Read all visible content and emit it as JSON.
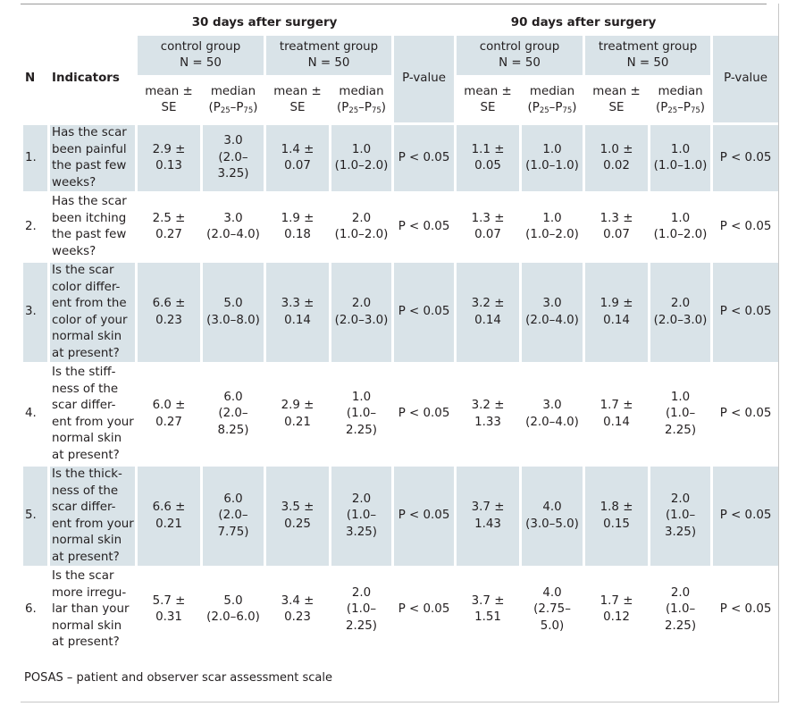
{
  "periods": [
    "30 days after surgery",
    "90 days after surgery"
  ],
  "col_n": "N",
  "col_indicators": "Indicators",
  "group_control": "control group",
  "group_treatment": "treatment group",
  "group_n": "N = 50",
  "pvalue_label": "P-value",
  "mean_label": "mean ± SE",
  "median_label": "median",
  "range_label": {
    "open": "(P",
    "p1": "25",
    "dash": "–P",
    "p2": "75",
    "close": ")"
  },
  "rows": [
    {
      "n": "1.",
      "indicator_lines": [
        "Has the scar",
        "been painful",
        "the past few",
        "weeks?"
      ],
      "d30": {
        "c_mean": "2.9 ± 0.13",
        "c_med": "3.0",
        "c_rng": "(2.0–3.25)",
        "t_mean": "1.4 ± 0.07",
        "t_med": "1.0",
        "t_rng": "(1.0–2.0)",
        "p": "P < 0.05"
      },
      "d90": {
        "c_mean": "1.1 ± 0.05",
        "c_med": "1.0",
        "c_rng": "(1.0–1.0)",
        "t_mean": "1.0 ± 0.02",
        "t_med": "1.0",
        "t_rng": "(1.0–1.0)",
        "p": "P < 0.05"
      }
    },
    {
      "n": "2.",
      "indicator_lines": [
        "Has the scar",
        "been itching",
        "the past few",
        "weeks?"
      ],
      "d30": {
        "c_mean": "2.5 ± 0.27",
        "c_med": "3.0",
        "c_rng": "(2.0–4.0)",
        "t_mean": "1.9 ± 0.18",
        "t_med": "2.0",
        "t_rng": "(1.0–2.0)",
        "p": "P < 0.05"
      },
      "d90": {
        "c_mean": "1.3 ± 0.07",
        "c_med": "1.0",
        "c_rng": "(1.0–2.0)",
        "t_mean": "1.3 ± 0.07",
        "t_med": "1.0",
        "t_rng": "(1.0–2.0)",
        "p": "P < 0.05"
      }
    },
    {
      "n": "3.",
      "indicator_lines": [
        "Is the scar",
        "color differ-",
        "ent from the",
        "color of your",
        "normal skin",
        "at present?"
      ],
      "d30": {
        "c_mean": "6.6 ± 0.23",
        "c_med": "5.0",
        "c_rng": "(3.0–8.0)",
        "t_mean": "3.3 ± 0.14",
        "t_med": "2.0",
        "t_rng": "(2.0–3.0)",
        "p": "P < 0.05"
      },
      "d90": {
        "c_mean": "3.2 ± 0.14",
        "c_med": "3.0",
        "c_rng": "(2.0–4.0)",
        "t_mean": "1.9 ± 0.14",
        "t_med": "2.0",
        "t_rng": "(2.0–3.0)",
        "p": "P < 0.05"
      }
    },
    {
      "n": "4.",
      "indicator_lines": [
        "Is the stiff-",
        "ness of the",
        "scar differ-",
        "ent from your",
        "normal skin",
        "at present?"
      ],
      "d30": {
        "c_mean": "6.0 ± 0.27",
        "c_med": "6.0",
        "c_rng": "(2.0–8.25)",
        "t_mean": "2.9 ± 0.21",
        "t_med": "1.0",
        "t_rng": "(1.0–2.25)",
        "p": "P < 0.05"
      },
      "d90": {
        "c_mean": "3.2 ± 1.33",
        "c_med": "3.0",
        "c_rng": "(2.0–4.0)",
        "t_mean": "1.7 ± 0.14",
        "t_med": "1.0",
        "t_rng": "(1.0–2.25)",
        "p": "P < 0.05"
      }
    },
    {
      "n": "5.",
      "indicator_lines": [
        "Is the thick-",
        "ness of the",
        "scar differ-",
        "ent from your",
        "normal skin",
        "at present?"
      ],
      "d30": {
        "c_mean": "6.6 ± 0.21",
        "c_med": "6.0",
        "c_rng": "(2.0–7.75)",
        "t_mean": "3.5 ± 0.25",
        "t_med": "2.0",
        "t_rng": "(1.0–3.25)",
        "p": "P < 0.05"
      },
      "d90": {
        "c_mean": "3.7 ± 1.43",
        "c_med": "4.0",
        "c_rng": "(3.0–5.0)",
        "t_mean": "1.8 ± 0.15",
        "t_med": "2.0",
        "t_rng": "(1.0–3.25)",
        "p": "P < 0.05"
      }
    },
    {
      "n": "6.",
      "indicator_lines": [
        "Is the scar",
        "more irregu-",
        "lar than your",
        "normal skin",
        "at present?"
      ],
      "d30": {
        "c_mean": "5.7 ± 0.31",
        "c_med": "5.0",
        "c_rng": "(2.0–6.0)",
        "t_mean": "3.4 ± 0.23",
        "t_med": "2.0",
        "t_rng": "(1.0–2.25)",
        "p": "P < 0.05"
      },
      "d90": {
        "c_mean": "3.7 ± 1.51",
        "c_med": "4.0",
        "c_rng": "(2.75–5.0)",
        "t_mean": "1.7 ± 0.12",
        "t_med": "2.0",
        "t_rng": "(1.0–2.25)",
        "p": "P < 0.05"
      }
    }
  ],
  "footnote": "POSAS – patient and observer scar assessment scale",
  "colors": {
    "shade": "#d9e3e8",
    "text": "#231f20"
  }
}
